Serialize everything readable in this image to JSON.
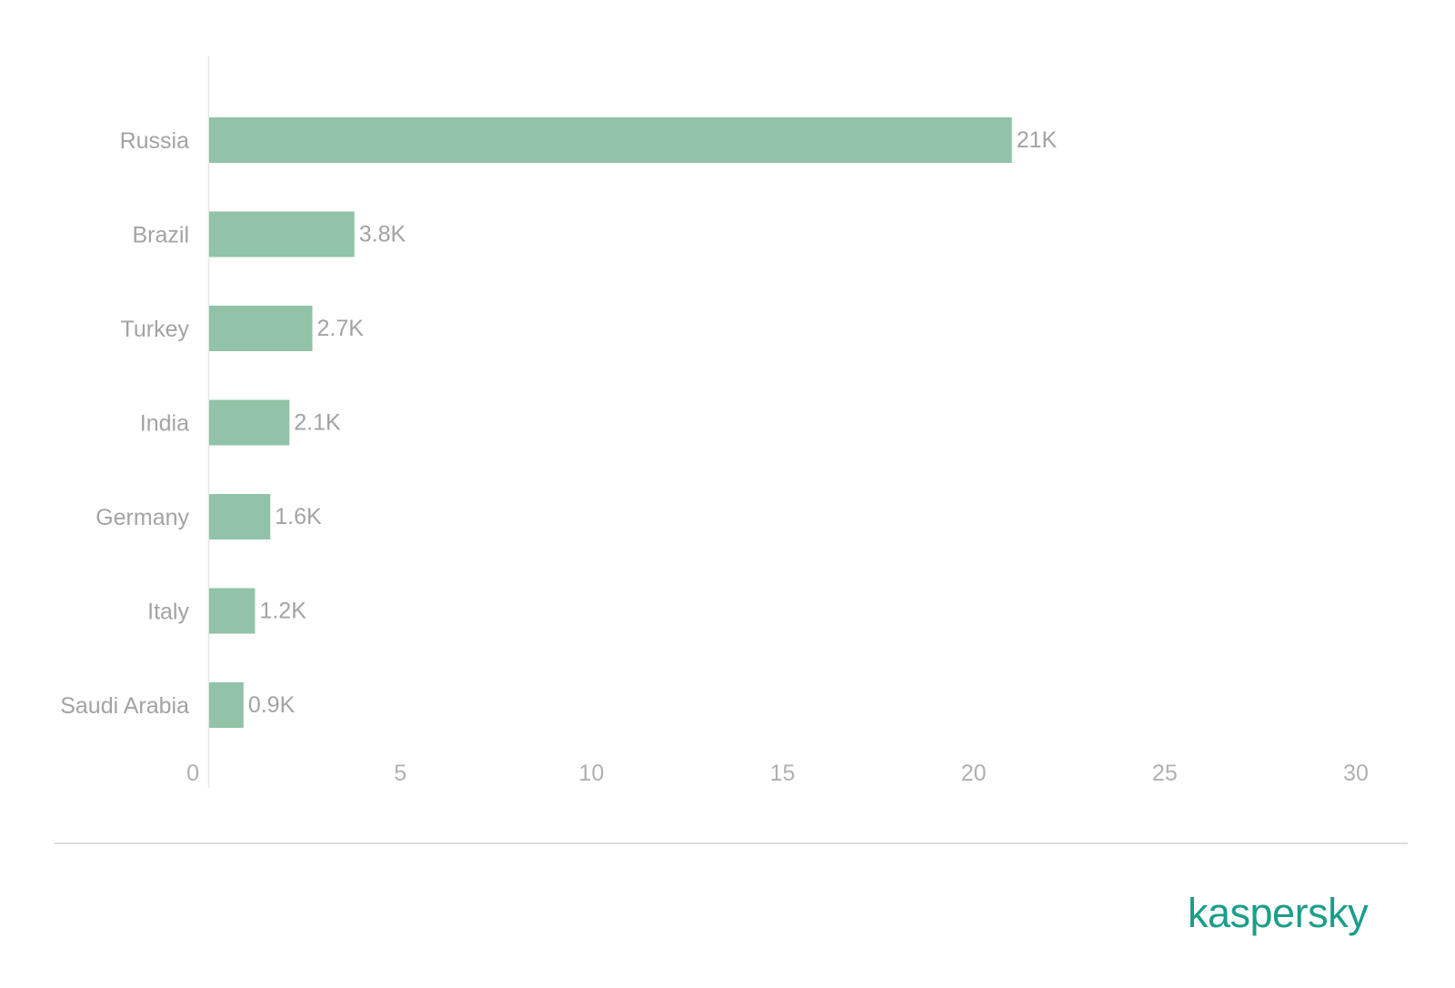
{
  "chart_data": {
    "type": "bar",
    "orientation": "horizontal",
    "categories": [
      "Russia",
      "Brazil",
      "Turkey",
      "India",
      "Germany",
      "Italy",
      "Saudi Arabia"
    ],
    "values": [
      21,
      3.8,
      2.7,
      2.1,
      1.6,
      1.2,
      0.9
    ],
    "data_labels": [
      "21K",
      "3.8K",
      "2.7K",
      "2.1K",
      "1.6K",
      "1.2K",
      "0.9K"
    ],
    "xlim": [
      0,
      30
    ],
    "xticks": [
      "0",
      "5",
      "10",
      "15",
      "20",
      "25",
      "30"
    ],
    "title": "",
    "xlabel": "",
    "ylabel": "",
    "grid": false,
    "bar_color": "#90c3a7"
  },
  "brand": {
    "logo_text": "kaspersky",
    "color": "#1a9e8a"
  }
}
